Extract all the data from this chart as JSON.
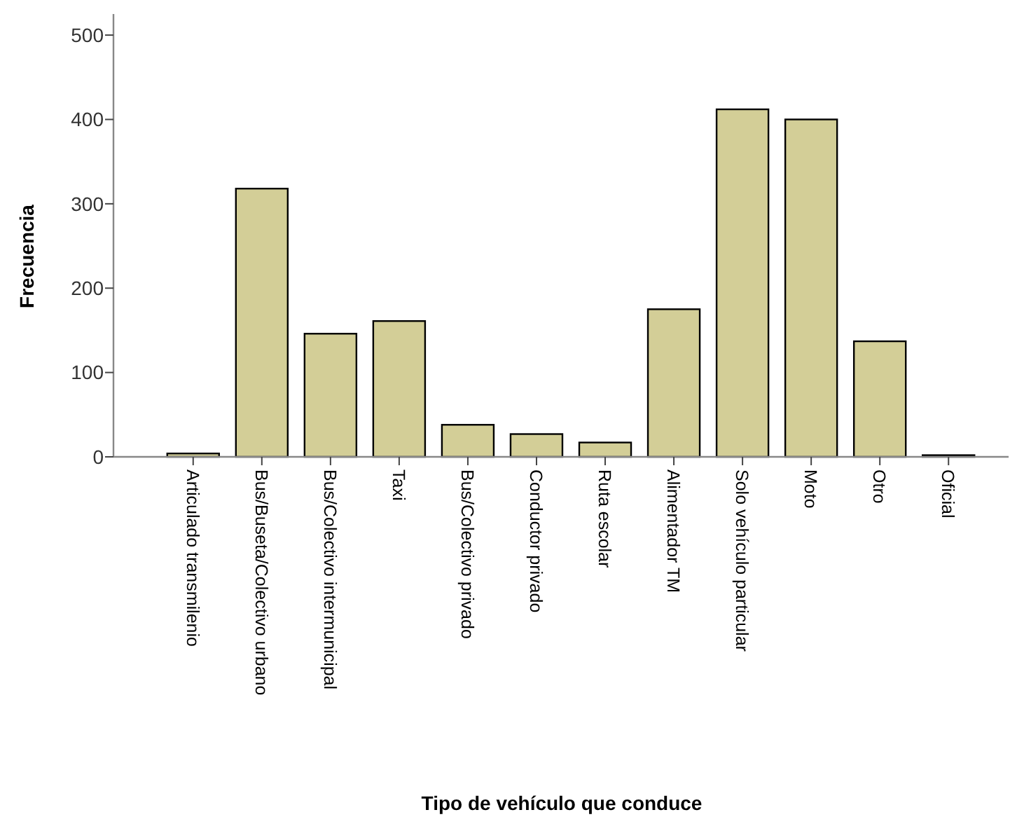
{
  "chart_data": {
    "type": "bar",
    "xlabel": "Tipo de vehículo que conduce",
    "ylabel": "Frecuencia",
    "categories": [
      "Articulado transmilenio",
      "Bus/Buseta/Colectivo urbano",
      "Bus/Colectivo intermunicipal",
      "Taxi",
      "Bus/Colectivo privado",
      "Conductor privado",
      "Ruta escolar",
      "Alimentador TM",
      "Solo vehículo particular",
      "Moto",
      "Otro",
      "Oficial"
    ],
    "values": [
      4,
      318,
      146,
      161,
      38,
      27,
      17,
      175,
      412,
      400,
      137,
      2
    ],
    "color": "#d3ce97",
    "ylim": [
      0,
      525
    ],
    "yticks": [
      0,
      100,
      200,
      300,
      400,
      500
    ],
    "grid": false
  }
}
